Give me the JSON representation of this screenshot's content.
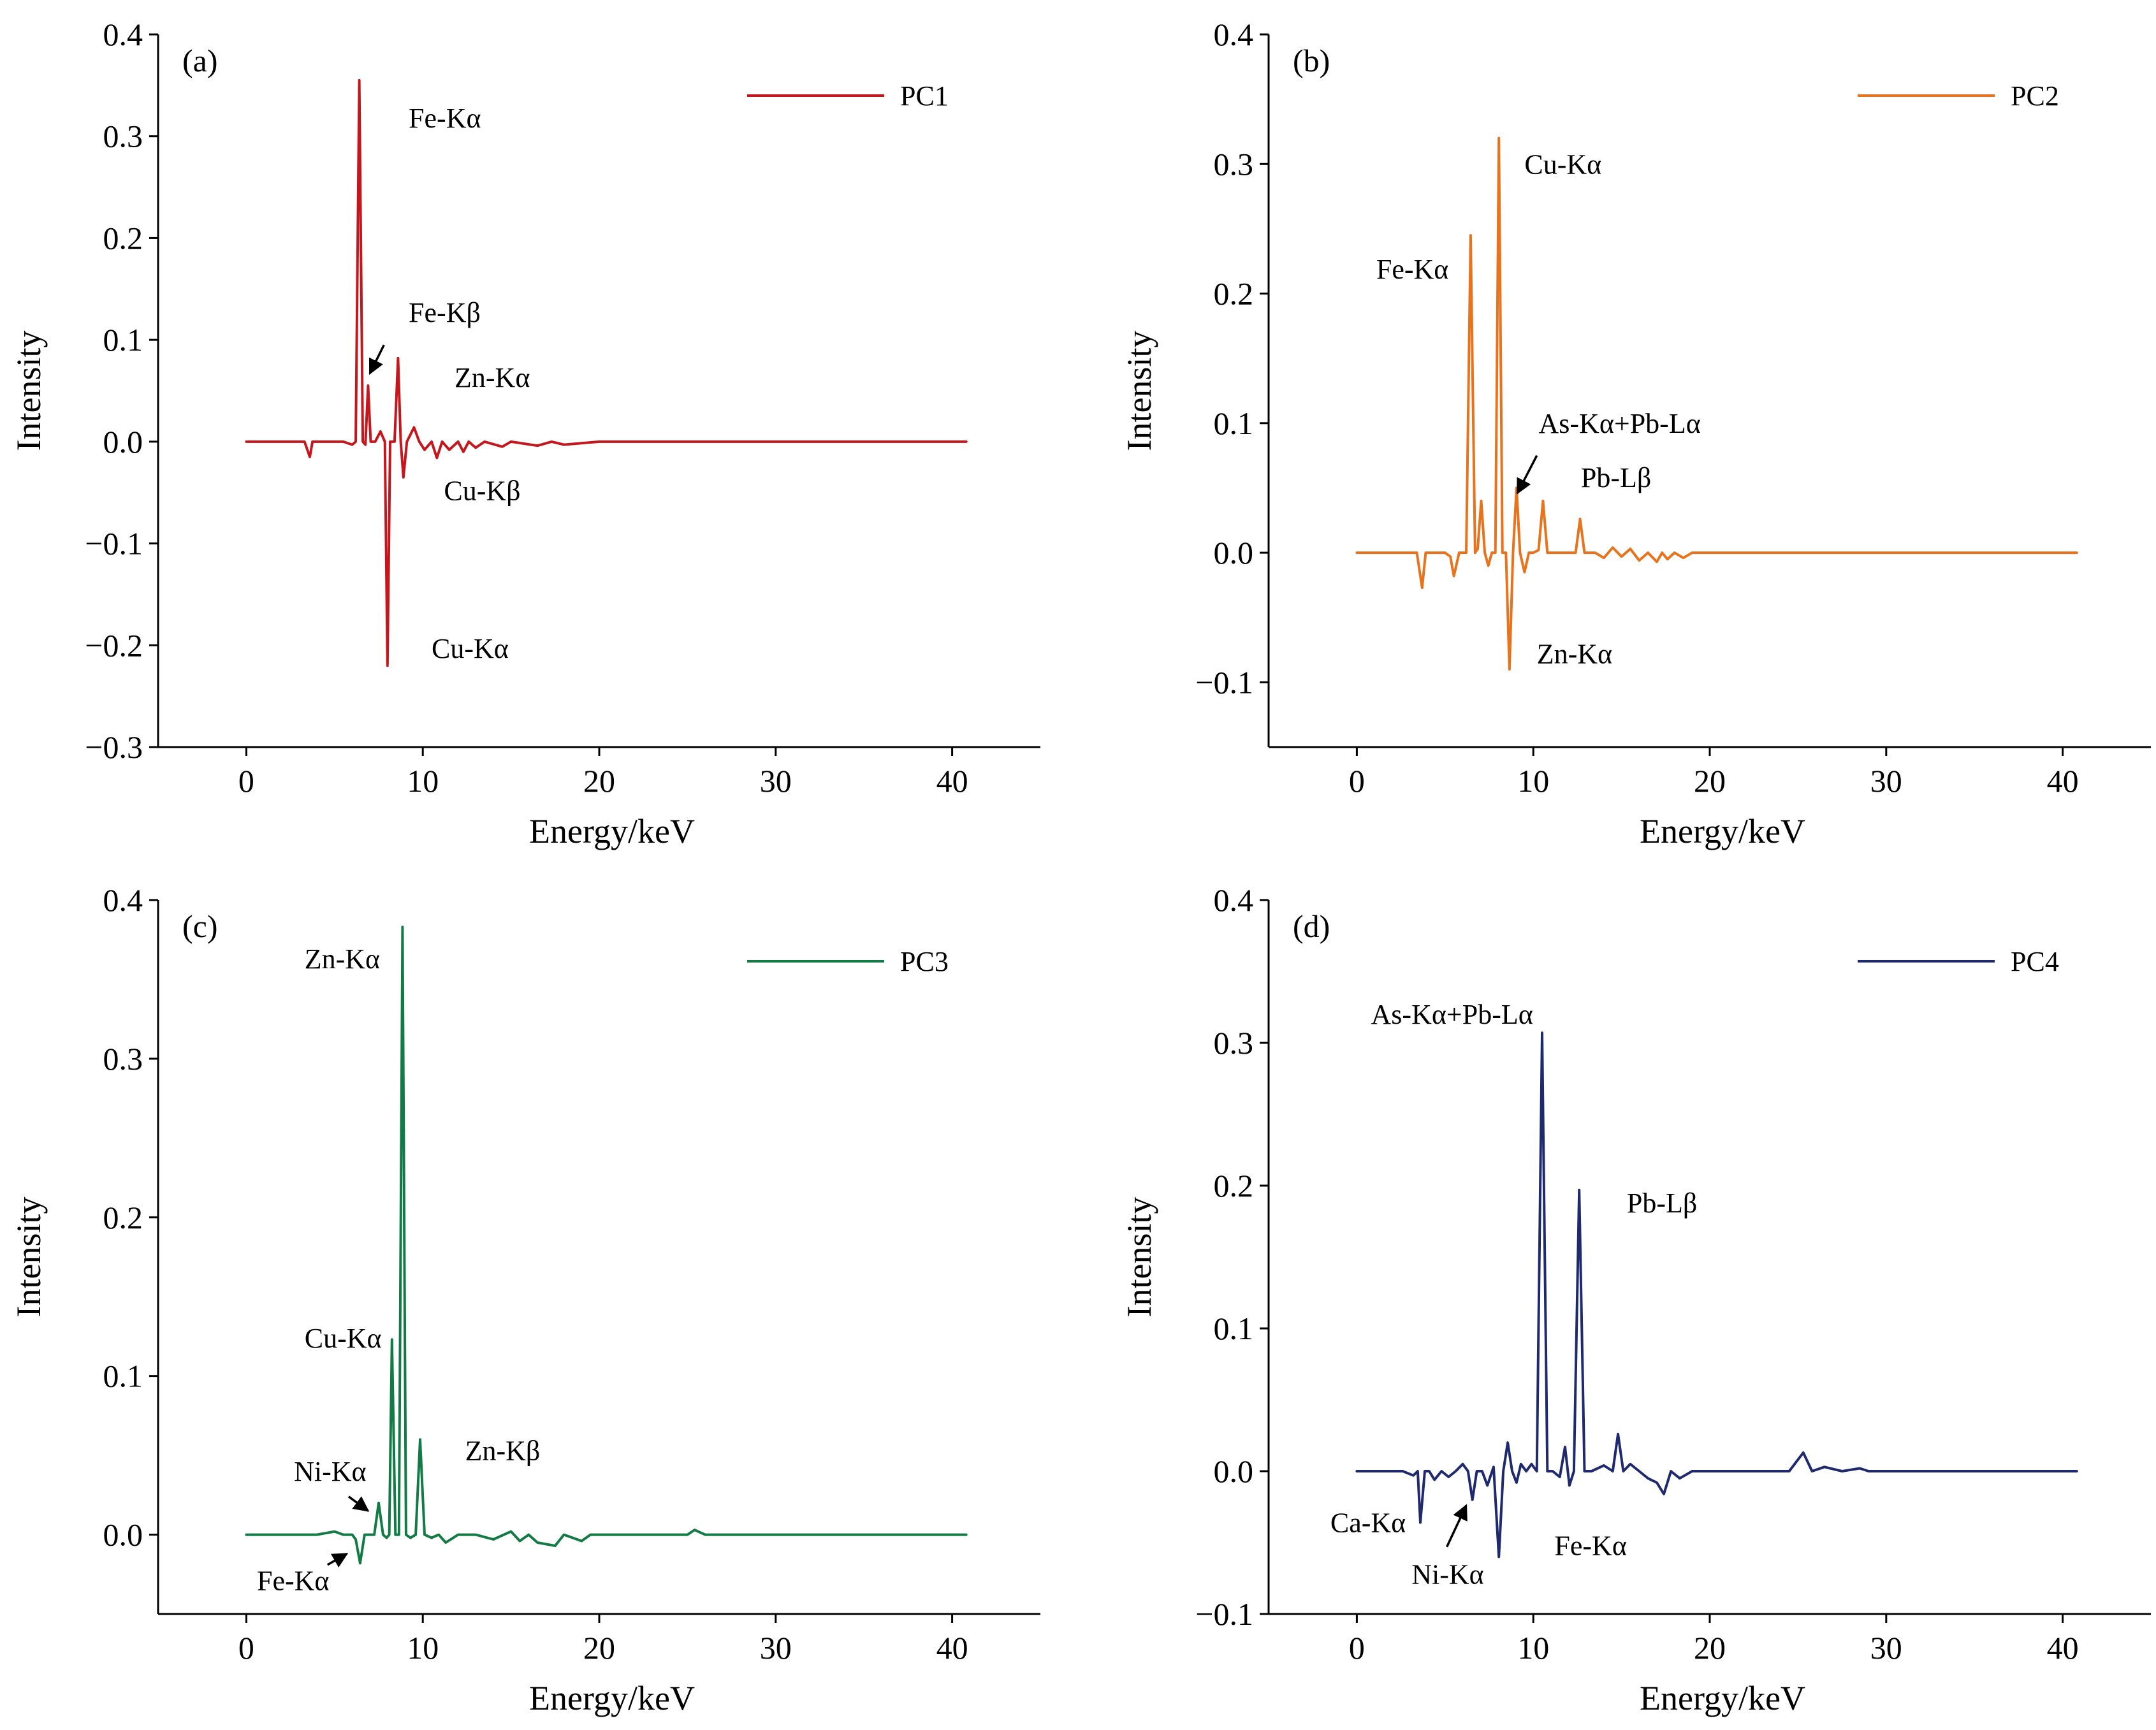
{
  "chart_data": [
    {
      "panel": "(a)",
      "type": "line",
      "xlabel": "Energy/keV",
      "ylabel": "Intensity",
      "xlim": [
        -5,
        45
      ],
      "ylim": [
        -0.3,
        0.4
      ],
      "xticks": [
        0,
        10,
        20,
        30,
        40
      ],
      "xtick_labels": [
        "0",
        "10",
        "20",
        "30",
        "40"
      ],
      "yticks": [
        -0.3,
        -0.2,
        -0.1,
        0.0,
        0.1,
        0.2,
        0.3,
        0.4
      ],
      "ytick_labels": [
        "−0.3",
        "−0.2",
        "−0.1",
        "0.0",
        "0.1",
        "0.2",
        "0.3",
        "0.4"
      ],
      "legend": "top-right",
      "color": "#c4161c",
      "series": [
        {
          "name": "PC1",
          "x": [
            0,
            3.3,
            3.6,
            3.75,
            4.0,
            5.5,
            6.0,
            6.2,
            6.4,
            6.6,
            6.75,
            6.9,
            7.05,
            7.3,
            7.6,
            7.85,
            8.0,
            8.15,
            8.4,
            8.6,
            8.75,
            8.9,
            9.1,
            9.5,
            9.8,
            10.1,
            10.5,
            10.8,
            11.1,
            11.5,
            12.0,
            12.3,
            12.6,
            13.0,
            13.5,
            14.5,
            15.0,
            16.5,
            17.3,
            18.0,
            20.0,
            25.0,
            30.0,
            35.0,
            40.8
          ],
          "y": [
            0.0,
            0.0,
            -0.015,
            0.0,
            0.0,
            0.0,
            -0.003,
            0.0,
            0.355,
            0.0,
            -0.003,
            0.055,
            0.0,
            0.0,
            0.01,
            0.0,
            -0.22,
            0.0,
            0.0,
            0.082,
            0.0,
            -0.035,
            0.0,
            0.014,
            0.0,
            -0.008,
            0.0,
            -0.016,
            0.0,
            -0.008,
            0.0,
            -0.01,
            0.0,
            -0.006,
            0.0,
            -0.005,
            0.0,
            -0.004,
            0.0,
            -0.003,
            0.0,
            0.0,
            0.0,
            0.0,
            0.0
          ]
        }
      ],
      "annotations": [
        {
          "text": "Fe-Kα",
          "x": 9.2,
          "y": 0.318
        },
        {
          "text": "Fe-Kβ",
          "x": 9.2,
          "y": 0.127
        },
        {
          "text": "Zn-Kα",
          "x": 11.8,
          "y": 0.063
        },
        {
          "text": "Cu-Kβ",
          "x": 11.2,
          "y": -0.048
        },
        {
          "text": "Cu-Kα",
          "x": 10.5,
          "y": -0.203
        }
      ],
      "arrows": [
        {
          "from": [
            7.8,
            0.095
          ],
          "to": [
            7.0,
            0.067
          ]
        }
      ]
    },
    {
      "panel": "(b)",
      "type": "line",
      "xlabel": "Energy/keV",
      "ylabel": "Intensity",
      "xlim": [
        -5,
        45
      ],
      "ylim": [
        -0.15,
        0.4
      ],
      "xticks": [
        0,
        10,
        20,
        30,
        40
      ],
      "xtick_labels": [
        "0",
        "10",
        "20",
        "30",
        "40"
      ],
      "yticks": [
        -0.1,
        0.0,
        0.1,
        0.2,
        0.3,
        0.4
      ],
      "ytick_labels": [
        "−0.1",
        "0.0",
        "0.1",
        "0.2",
        "0.3",
        "0.4"
      ],
      "legend": "top-right",
      "color": "#e8731c",
      "series": [
        {
          "name": "PC2",
          "x": [
            0,
            3.4,
            3.7,
            3.9,
            4.2,
            5.0,
            5.3,
            5.5,
            5.8,
            6.2,
            6.45,
            6.7,
            6.85,
            7.05,
            7.25,
            7.45,
            7.65,
            7.85,
            8.05,
            8.25,
            8.45,
            8.65,
            8.85,
            9.05,
            9.25,
            9.5,
            9.75,
            10.0,
            10.3,
            10.55,
            10.8,
            11.2,
            12.0,
            12.4,
            12.65,
            12.9,
            13.5,
            14.0,
            14.5,
            15.0,
            15.5,
            16.0,
            16.5,
            17.0,
            17.3,
            17.6,
            18.0,
            18.5,
            19.0,
            20.0,
            25.0,
            30.0,
            35.0,
            40.8
          ],
          "y": [
            0.0,
            0.0,
            -0.027,
            0.0,
            0.0,
            0.0,
            -0.003,
            -0.018,
            0.0,
            0.0,
            0.245,
            0.0,
            0.003,
            0.04,
            0.0,
            -0.01,
            0.0,
            0.0,
            0.32,
            0.0,
            0.0,
            -0.09,
            0.0,
            0.05,
            0.0,
            -0.015,
            0.0,
            0.0,
            0.002,
            0.04,
            0.0,
            0.0,
            0.0,
            0.0,
            0.026,
            0.0,
            0.0,
            -0.004,
            0.004,
            -0.003,
            0.003,
            -0.006,
            0.0,
            -0.007,
            0.0,
            -0.005,
            0.0,
            -0.004,
            0.0,
            0.0,
            0.0,
            0.0,
            0.0,
            0.0
          ]
        }
      ],
      "annotations": [
        {
          "text": "Cu-Kα",
          "x": 9.5,
          "y": 0.3
        },
        {
          "text": "Fe-Kα",
          "x": 1.1,
          "y": 0.219
        },
        {
          "text": "As-Kα+Pb-Lα",
          "x": 10.3,
          "y": 0.1
        },
        {
          "text": "Pb-Lβ",
          "x": 12.7,
          "y": 0.058
        },
        {
          "text": "Zn-Kα",
          "x": 10.2,
          "y": -0.078
        }
      ],
      "arrows": [
        {
          "from": [
            10.2,
            0.075
          ],
          "to": [
            9.1,
            0.046
          ]
        }
      ]
    },
    {
      "panel": "(c)",
      "type": "line",
      "xlabel": "Energy/keV",
      "ylabel": "Intensity",
      "xlim": [
        -5,
        45
      ],
      "ylim": [
        -0.05,
        0.4
      ],
      "xticks": [
        0,
        10,
        20,
        30,
        40
      ],
      "xtick_labels": [
        "0",
        "10",
        "20",
        "30",
        "40"
      ],
      "yticks": [
        0.0,
        0.1,
        0.2,
        0.3,
        0.4
      ],
      "ytick_labels": [
        "0.0",
        "0.1",
        "0.2",
        "0.3",
        "0.4"
      ],
      "legend": "top-right",
      "color": "#127a45",
      "series": [
        {
          "name": "PC3",
          "x": [
            0,
            4.0,
            5.0,
            5.5,
            6.0,
            6.2,
            6.45,
            6.7,
            7.0,
            7.25,
            7.5,
            7.75,
            7.95,
            8.1,
            8.25,
            8.45,
            8.65,
            8.85,
            9.05,
            9.3,
            9.6,
            9.85,
            10.1,
            10.5,
            10.9,
            11.3,
            12.0,
            12.5,
            13.0,
            14.0,
            15.0,
            15.5,
            16.0,
            16.5,
            17.0,
            17.5,
            18.0,
            19.0,
            19.5,
            20.0,
            21.0,
            25.0,
            25.4,
            26.0,
            30.0,
            35.0,
            40.8
          ],
          "y": [
            0.0,
            0.0,
            0.002,
            0.0,
            0.0,
            -0.003,
            -0.018,
            0.0,
            0.0,
            0.0,
            0.02,
            0.0,
            -0.002,
            0.0,
            0.123,
            0.0,
            0.0,
            0.383,
            0.0,
            -0.002,
            0.0,
            0.06,
            0.0,
            -0.002,
            0.0,
            -0.005,
            0.0,
            0.0,
            0.0,
            -0.003,
            0.002,
            -0.004,
            0.0,
            -0.005,
            -0.006,
            -0.007,
            0.0,
            -0.004,
            0.0,
            0.0,
            0.0,
            0.0,
            0.003,
            0.0,
            0.0,
            0.0,
            0.0
          ]
        }
      ],
      "annotations": [
        {
          "text": "Zn-Kα",
          "x": 3.3,
          "y": 0.363
        },
        {
          "text": "Cu-Kα",
          "x": 3.3,
          "y": 0.124
        },
        {
          "text": "Ni-Kα",
          "x": 2.7,
          "y": 0.04
        },
        {
          "text": "Zn-Kβ",
          "x": 12.4,
          "y": 0.053
        },
        {
          "text": "Fe-Kα",
          "x": 0.6,
          "y": -0.029
        }
      ],
      "arrows": [
        {
          "from": [
            5.8,
            0.024
          ],
          "to": [
            6.9,
            0.015
          ]
        },
        {
          "from": [
            4.6,
            -0.019
          ],
          "to": [
            5.7,
            -0.012
          ]
        }
      ]
    },
    {
      "panel": "(d)",
      "type": "line",
      "xlabel": "Energy/keV",
      "ylabel": "Intensity",
      "xlim": [
        -5,
        45
      ],
      "ylim": [
        -0.1,
        0.4
      ],
      "xticks": [
        0,
        10,
        20,
        30,
        40
      ],
      "xtick_labels": [
        "0",
        "10",
        "20",
        "30",
        "40"
      ],
      "yticks": [
        -0.1,
        0.0,
        0.1,
        0.2,
        0.3,
        0.4
      ],
      "ytick_labels": [
        "−0.1",
        "0.0",
        "0.1",
        "0.2",
        "0.3",
        "0.4"
      ],
      "legend": "top-right",
      "color": "#1f2a6e",
      "series": [
        {
          "name": "PC4",
          "x": [
            0,
            2.6,
            3.2,
            3.45,
            3.6,
            3.85,
            4.1,
            4.4,
            4.8,
            5.2,
            5.6,
            6.0,
            6.3,
            6.55,
            6.8,
            7.1,
            7.4,
            7.75,
            8.05,
            8.3,
            8.55,
            8.8,
            9.05,
            9.3,
            9.6,
            9.9,
            10.2,
            10.5,
            10.8,
            11.1,
            11.5,
            11.8,
            12.05,
            12.3,
            12.6,
            12.9,
            13.3,
            14.0,
            14.5,
            14.8,
            15.1,
            15.5,
            16.0,
            16.5,
            17.0,
            17.4,
            17.8,
            18.3,
            19.0,
            20.0,
            22.0,
            24.5,
            25.3,
            25.8,
            26.5,
            27.5,
            28.5,
            29.0,
            30.0,
            35.0,
            40.8
          ],
          "y": [
            0.0,
            0.0,
            -0.003,
            0.0,
            -0.036,
            0.0,
            0.0,
            -0.006,
            0.0,
            -0.004,
            0.0,
            0.005,
            0.0,
            -0.02,
            0.0,
            0.0,
            -0.01,
            0.003,
            -0.06,
            0.0,
            0.02,
            0.0,
            -0.008,
            0.005,
            0.0,
            0.005,
            0.0,
            0.307,
            0.0,
            0.0,
            -0.004,
            0.017,
            -0.01,
            0.0,
            0.197,
            0.0,
            0.0,
            0.004,
            0.0,
            0.026,
            0.0,
            0.005,
            0.0,
            -0.005,
            -0.008,
            -0.016,
            0.0,
            -0.005,
            0.0,
            0.0,
            0.0,
            0.0,
            0.013,
            0.0,
            0.003,
            0.0,
            0.002,
            0.0,
            0.0,
            0.0,
            0.0
          ]
        }
      ],
      "annotations": [
        {
          "text": "As-Kα+Pb-Lα",
          "x": 0.8,
          "y": 0.32
        },
        {
          "text": "Pb-Lβ",
          "x": 15.3,
          "y": 0.188
        },
        {
          "text": "Ca-Kα",
          "x": -1.5,
          "y": -0.036
        },
        {
          "text": "Ni-Kα",
          "x": 3.1,
          "y": -0.072
        },
        {
          "text": "Fe-Kα",
          "x": 11.2,
          "y": -0.052
        }
      ],
      "arrows": [
        {
          "from": [
            5.1,
            -0.053
          ],
          "to": [
            6.2,
            -0.024
          ]
        }
      ]
    }
  ]
}
